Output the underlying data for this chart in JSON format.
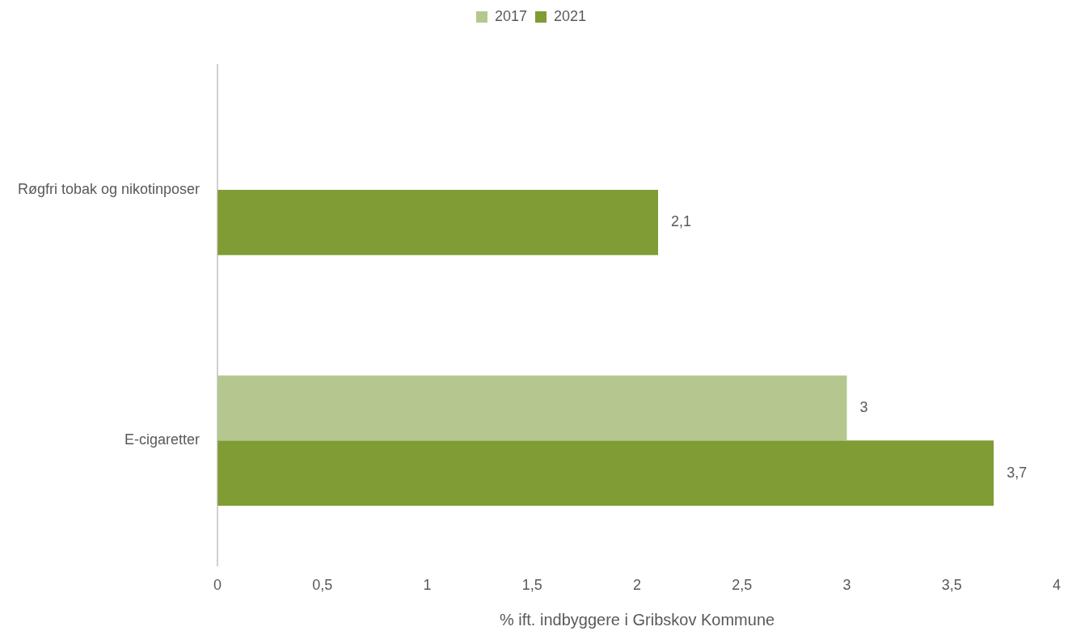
{
  "chart_data": {
    "type": "bar",
    "orientation": "horizontal",
    "xlabel": "% ift. indbyggere i Gribskov Kommune",
    "categories": [
      "Røgfri tobak og nikotinposer",
      "E-cigaretter"
    ],
    "series": [
      {
        "name": "2017",
        "color": "#b5c78f",
        "values": [
          null,
          3
        ],
        "value_labels": [
          null,
          "3"
        ]
      },
      {
        "name": "2021",
        "color": "#7f9c35",
        "values": [
          2.1,
          3.7
        ],
        "value_labels": [
          "2,1",
          "3,7"
        ]
      }
    ],
    "xlim": [
      0,
      4
    ],
    "xticks": [
      0,
      {
        "value": 0.5,
        "label": "0,5"
      },
      1,
      {
        "value": 1.5,
        "label": "1,5"
      },
      2,
      {
        "value": 2.5,
        "label": "2,5"
      },
      3,
      {
        "value": 3.5,
        "label": "3,5"
      },
      4
    ],
    "legend": "top"
  }
}
